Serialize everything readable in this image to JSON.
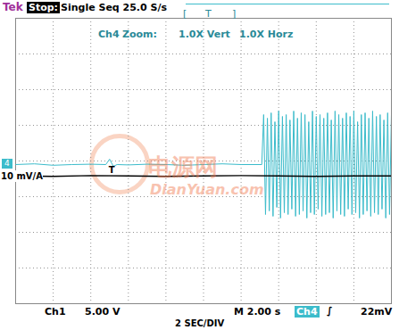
{
  "screen": {
    "header": {
      "brand": "Tek",
      "state": "Stop:",
      "acquisition": "Single Seq 25.0 S/s",
      "record_view": {
        "left": "[",
        "trigger": "T",
        "right": "]"
      }
    },
    "zoom": {
      "channel": "Ch4",
      "label": "Zoom:",
      "vertical": "1.0X Vert",
      "horizontal": "1.0X Horz"
    },
    "watermark": {
      "text": "电源网",
      "url": "DianYuan.com"
    },
    "scale_label": "10 mV/A",
    "channel_marker": "4",
    "trigger_marker": {
      "label": "T",
      "x": 2.56,
      "y": -0.25
    },
    "footer": {
      "ch1": "Ch1",
      "ch1_scale": "5.00 V",
      "timebase": "M 2.00 s",
      "trigger_source": "Ch4",
      "trigger_slope": "∫",
      "trigger_level": "22mV",
      "sec_div": "2 SEC/DIV"
    }
  },
  "chart_data": {
    "type": "line",
    "xlim": [
      0,
      10
    ],
    "ylim": [
      -4,
      4
    ],
    "xticks": [
      0,
      1,
      2,
      3,
      4,
      5,
      6,
      7,
      8,
      9,
      10
    ],
    "yticks": [
      -4,
      -3,
      -2,
      -1,
      0,
      1,
      2,
      3,
      4
    ],
    "grid": true,
    "tick_labels": false,
    "series": [
      {
        "name": "Ch4",
        "color": "#3cbccb",
        "x": [
          0,
          0.5,
          1,
          1.5,
          2,
          2.4,
          2.5,
          2.6,
          2.7,
          3,
          3.5,
          4,
          4.5,
          5,
          5.5,
          6,
          6.55,
          6.6,
          6.65,
          6.7,
          6.75,
          6.8,
          6.85,
          6.9,
          6.95,
          7,
          7.05,
          7.1,
          7.15,
          7.2,
          7.25,
          7.3,
          7.35,
          7.4,
          7.45,
          7.5,
          7.55,
          7.6,
          7.65,
          7.7,
          7.75,
          7.8,
          7.85,
          7.9,
          7.95,
          8,
          8.05,
          8.1,
          8.15,
          8.2,
          8.25,
          8.3,
          8.35,
          8.4,
          8.45,
          8.5,
          8.55,
          8.6,
          8.65,
          8.7,
          8.75,
          8.8,
          8.85,
          8.9,
          8.95,
          9,
          9.05,
          9.1,
          9.15,
          9.2,
          9.25,
          9.3,
          9.35,
          9.4,
          9.45,
          9.5,
          9.55,
          9.6,
          9.65,
          9.7,
          9.75,
          9.8,
          9.85,
          9.9,
          9.95,
          10
        ],
        "values": [
          -0.1,
          -0.08,
          -0.12,
          -0.1,
          -0.09,
          -0.1,
          0.05,
          -0.15,
          -0.1,
          -0.11,
          -0.09,
          -0.1,
          -0.12,
          -0.1,
          -0.08,
          -0.1,
          -0.1,
          1.3,
          -1.5,
          1.2,
          -1.4,
          1.35,
          -1.55,
          1.1,
          -1.3,
          1.4,
          -1.6,
          1.25,
          -1.45,
          1.3,
          -1.5,
          1.15,
          -1.35,
          1.4,
          -1.55,
          1.2,
          -1.5,
          1.35,
          -1.4,
          1.3,
          -1.6,
          1.1,
          -1.45,
          1.4,
          -1.5,
          1.25,
          -1.35,
          1.3,
          -1.55,
          1.2,
          -1.5,
          1.35,
          -1.45,
          1.15,
          -1.6,
          1.4,
          -1.4,
          1.3,
          -1.5,
          1.2,
          -1.55,
          1.35,
          -1.35,
          1.25,
          -1.5,
          1.4,
          -1.45,
          1.1,
          -1.6,
          1.3,
          -1.5,
          1.35,
          -1.4,
          1.2,
          -1.55,
          1.4,
          -1.45,
          1.25,
          -1.5,
          1.3,
          -1.35,
          1.15,
          -1.6,
          1.35,
          -1.5,
          1.3
        ]
      },
      {
        "name": "Ch1",
        "color": "#000000",
        "x": [
          0,
          1,
          2,
          3,
          4,
          5,
          6,
          7,
          8,
          9,
          10
        ],
        "values": [
          -0.42,
          -0.43,
          -0.41,
          -0.42,
          -0.43,
          -0.42,
          -0.41,
          -0.42,
          -0.43,
          -0.42,
          -0.42
        ]
      }
    ]
  }
}
